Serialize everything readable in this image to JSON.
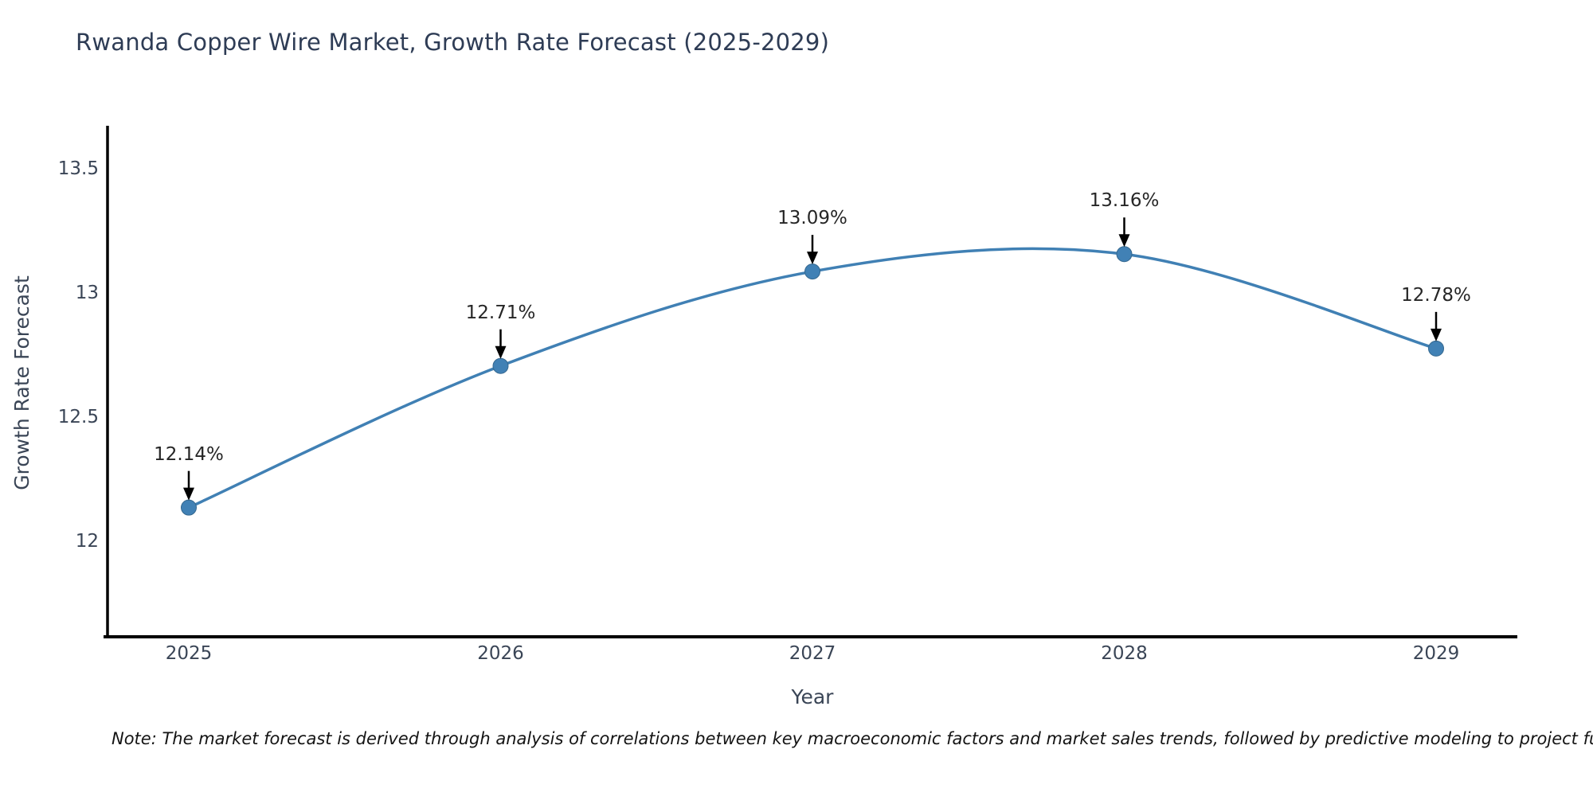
{
  "note": {
    "text": "Note: The market forecast is derived through analysis of correlations between key macroeconomic factors and market sales trends, followed by predictive modeling to project future sales"
  },
  "colors": {
    "title": "#2e3c55",
    "axis_label": "#3a4556",
    "tick_label": "#3a4556",
    "note_text": "#141414",
    "spine": "#000000",
    "background": "#ffffff"
  },
  "chart_data": {
    "type": "line",
    "title": "Rwanda Copper Wire Market, Growth Rate Forecast (2025-2029)",
    "xlabel": "Year",
    "ylabel": "Growth Rate Forecast",
    "categories": [
      "2025",
      "2026",
      "2027",
      "2028",
      "2029"
    ],
    "values": [
      12.14,
      12.71,
      13.09,
      13.16,
      12.78
    ],
    "point_labels": [
      "12.14%",
      "12.71%",
      "13.09%",
      "13.16%",
      "12.78%"
    ],
    "series_name": "Growth Rate Forecast (%)",
    "yticks": [
      12,
      12.5,
      13,
      13.5
    ],
    "ytick_labels": [
      "12",
      "12.5",
      "13",
      "13.5"
    ],
    "ylim": [
      11.62,
      13.67
    ],
    "grid": false,
    "legend": null,
    "smooth": true,
    "line_color": "#4080b4",
    "marker_color": "#4181b5",
    "marker_edge_color": "#35688f",
    "annotation_arrow_color": "#000000"
  }
}
